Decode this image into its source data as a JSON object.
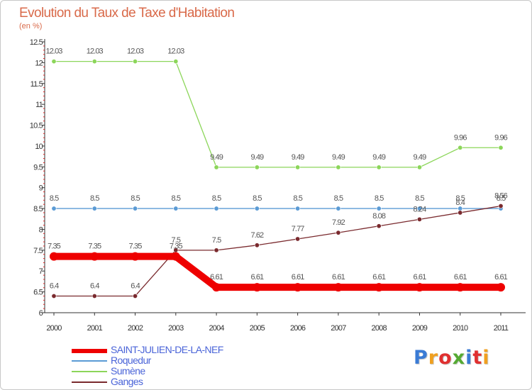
{
  "chart_data": {
    "type": "line",
    "title": "Evolution du Taux de Taxe d'Habitation",
    "subtitle": "(en %)",
    "x": [
      "2000",
      "2001",
      "2002",
      "2003",
      "2004",
      "2005",
      "2006",
      "2007",
      "2008",
      "2009",
      "2010",
      "2011"
    ],
    "y_ticks": [
      "6",
      "6.5",
      "7",
      "7.5",
      "8",
      "8.5",
      "9",
      "9.5",
      "10",
      "10.5",
      "11",
      "11.5",
      "12",
      "12.5"
    ],
    "ylim": [
      6,
      12.5
    ],
    "grid": false,
    "legend_position": "bottom-left",
    "series": [
      {
        "name": "SAINT-JULIEN-DE-LA-NEF",
        "color": "#ee0000",
        "values": [
          7.35,
          7.35,
          7.35,
          7.35,
          6.61,
          6.61,
          6.61,
          6.61,
          6.61,
          6.61,
          6.61,
          6.61
        ],
        "labels": [
          "7.35",
          "7.35",
          "7.35",
          "7.35",
          "6.61",
          "6.61",
          "6.61",
          "6.61",
          "6.61",
          "6.61",
          "6.61",
          "6.61"
        ]
      },
      {
        "name": "Roquedur",
        "color": "#5b9bd5",
        "values": [
          8.5,
          8.5,
          8.5,
          8.5,
          8.5,
          8.5,
          8.5,
          8.5,
          8.5,
          8.5,
          8.5,
          8.5
        ],
        "labels": [
          "8.5",
          "8.5",
          "8.5",
          "8.5",
          "8.5",
          "8.5",
          "8.5",
          "8.5",
          "8.5",
          "8.5",
          "8.5",
          "8.5"
        ]
      },
      {
        "name": "Sumène",
        "color": "#8cd65a",
        "values": [
          12.03,
          12.03,
          12.03,
          12.03,
          9.49,
          9.49,
          9.49,
          9.49,
          9.49,
          9.49,
          9.96,
          9.96
        ],
        "labels": [
          "12.03",
          "12.03",
          "12.03",
          "12.03",
          "9.49",
          "9.49",
          "9.49",
          "9.49",
          "9.49",
          "9.49",
          "9.96",
          "9.96"
        ]
      },
      {
        "name": "Ganges",
        "color": "#7a2a2e",
        "values": [
          6.4,
          6.4,
          6.4,
          7.5,
          7.5,
          7.62,
          7.77,
          7.92,
          8.08,
          8.24,
          8.4,
          8.56
        ],
        "labels": [
          "6.4",
          "6.4",
          "6.4",
          "7.5",
          "7.5",
          "7.62",
          "7.77",
          "7.92",
          "8.08",
          "8.24",
          "8.4",
          "8.56"
        ]
      }
    ]
  },
  "logo": {
    "text": "Proxiti",
    "colors": [
      "#3a7bd5",
      "#f0a020",
      "#e03030",
      "#55aa33",
      "#3a7bd5",
      "#e03030",
      "#f0a020"
    ]
  }
}
